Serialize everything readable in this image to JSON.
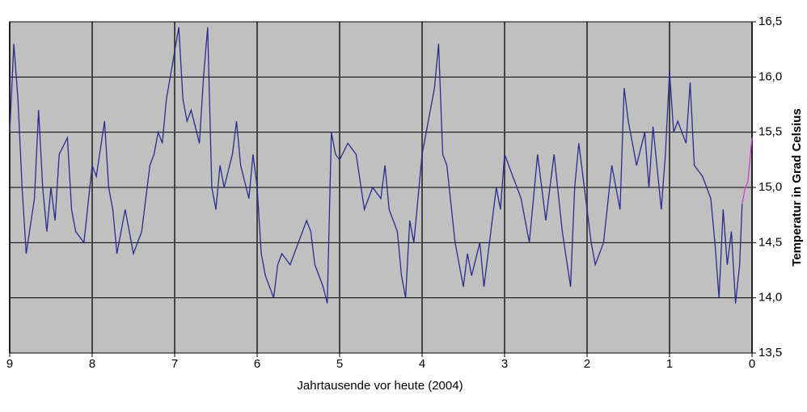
{
  "chart_data": {
    "type": "line",
    "x_label": "Jahrtausende vor heute (2004)",
    "y_label": "Temperatur in Grad Celsius",
    "xlim": [
      9,
      0
    ],
    "xticks": [
      9,
      8,
      7,
      6,
      5,
      4,
      3,
      2,
      1,
      0
    ],
    "ylim": [
      13.5,
      16.5
    ],
    "yticks": [
      {
        "value": 13.5,
        "label": "13,5"
      },
      {
        "value": 14.0,
        "label": "14,0"
      },
      {
        "value": 14.5,
        "label": "14,5"
      },
      {
        "value": 15.0,
        "label": "15,0"
      },
      {
        "value": 15.5,
        "label": "15,5"
      },
      {
        "value": 16.0,
        "label": "16,0"
      },
      {
        "value": 16.5,
        "label": "16,5"
      }
    ],
    "grid": true,
    "y_axis_side": "right",
    "background": "#c0c0c0",
    "series": [
      {
        "color": "#2b2b8f",
        "x": [
          9.0,
          8.95,
          8.9,
          8.85,
          8.8,
          8.7,
          8.65,
          8.6,
          8.55,
          8.5,
          8.45,
          8.4,
          8.3,
          8.25,
          8.2,
          8.1,
          8.0,
          7.95,
          7.85,
          7.8,
          7.75,
          7.7,
          7.6,
          7.5,
          7.4,
          7.3,
          7.25,
          7.2,
          7.15,
          7.1,
          6.95,
          6.9,
          6.85,
          6.8,
          6.7,
          6.65,
          6.6,
          6.55,
          6.5,
          6.45,
          6.4,
          6.3,
          6.25,
          6.2,
          6.1,
          6.05,
          6.0,
          5.95,
          5.9,
          5.8,
          5.75,
          5.7,
          5.6,
          5.5,
          5.4,
          5.35,
          5.3,
          5.2,
          5.15,
          5.1,
          5.05,
          5.0,
          4.9,
          4.8,
          4.7,
          4.6,
          4.5,
          4.45,
          4.4,
          4.3,
          4.25,
          4.2,
          4.15,
          4.1,
          4.0,
          3.9,
          3.85,
          3.8,
          3.75,
          3.7,
          3.6,
          3.5,
          3.45,
          3.4,
          3.3,
          3.25,
          3.2,
          3.1,
          3.05,
          3.0,
          2.9,
          2.8,
          2.7,
          2.6,
          2.5,
          2.4,
          2.3,
          2.2,
          2.15,
          2.1,
          2.0,
          1.95,
          1.9,
          1.8,
          1.7,
          1.6,
          1.55,
          1.5,
          1.4,
          1.3,
          1.25,
          1.2,
          1.1,
          1.05,
          1.0,
          0.95,
          0.9,
          0.8,
          0.75,
          0.7,
          0.6,
          0.5,
          0.45,
          0.4,
          0.35,
          0.3,
          0.25,
          0.2,
          0.15,
          0.12
        ],
        "values": [
          15.5,
          16.3,
          15.8,
          15.0,
          14.4,
          14.9,
          15.7,
          15.0,
          14.6,
          15.0,
          14.7,
          15.3,
          15.45,
          14.8,
          14.6,
          14.5,
          15.2,
          15.1,
          15.6,
          15.0,
          14.8,
          14.4,
          14.8,
          14.4,
          14.6,
          15.2,
          15.3,
          15.5,
          15.4,
          15.8,
          16.45,
          15.8,
          15.6,
          15.7,
          15.4,
          16.0,
          16.45,
          15.0,
          14.8,
          15.2,
          15.0,
          15.3,
          15.6,
          15.2,
          14.9,
          15.3,
          15.0,
          14.4,
          14.2,
          14.0,
          14.3,
          14.4,
          14.3,
          14.5,
          14.7,
          14.6,
          14.3,
          14.1,
          13.95,
          15.5,
          15.3,
          15.25,
          15.4,
          15.3,
          14.8,
          15.0,
          14.9,
          15.2,
          14.8,
          14.6,
          14.2,
          14.0,
          14.7,
          14.5,
          15.3,
          15.7,
          15.9,
          16.3,
          15.3,
          15.2,
          14.5,
          14.1,
          14.4,
          14.2,
          14.5,
          14.1,
          14.4,
          15.0,
          14.8,
          15.3,
          15.1,
          14.9,
          14.5,
          15.3,
          14.7,
          15.3,
          14.6,
          14.1,
          15.0,
          15.4,
          14.8,
          14.5,
          14.3,
          14.5,
          15.2,
          14.8,
          15.9,
          15.6,
          15.2,
          15.5,
          15.0,
          15.55,
          14.8,
          15.3,
          16.05,
          15.5,
          15.6,
          15.4,
          15.95,
          15.2,
          15.1,
          14.9,
          14.5,
          14.0,
          14.8,
          14.3,
          14.6,
          13.95,
          14.3,
          14.85
        ]
      },
      {
        "color": "#d040d0",
        "x": [
          0.12,
          0.08,
          0.05,
          0.02,
          0.0
        ],
        "values": [
          14.85,
          15.0,
          15.05,
          15.3,
          15.45
        ]
      }
    ]
  }
}
